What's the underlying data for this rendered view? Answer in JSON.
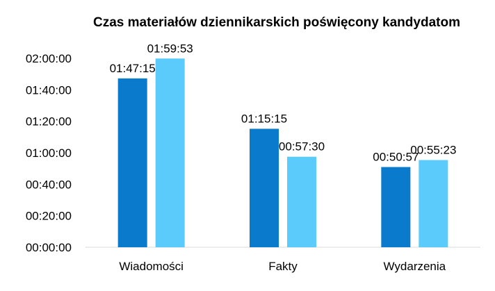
{
  "chart_data": {
    "type": "bar",
    "title": "Czas materiałów dziennikarskich poświęcony kandydatom",
    "categories": [
      "Wiadomości",
      "Fakty",
      "Wydarzenia"
    ],
    "series": [
      {
        "values": [
          6435,
          4515,
          3057
        ],
        "labels": [
          "01:47:15",
          "01:15:15",
          "00:50:57"
        ],
        "color": "#0A7ACC"
      },
      {
        "values": [
          7193,
          3450,
          3323
        ],
        "labels": [
          "01:59:53",
          "00:57:30",
          "00:55:23"
        ],
        "color": "#5BCBFB"
      }
    ],
    "value_unit": "seconds",
    "ylim": [
      0,
      7200
    ],
    "yticks": [
      0,
      1200,
      2400,
      3600,
      4800,
      6000,
      7200
    ],
    "ytick_labels": [
      "00:00:00",
      "00:20:00",
      "00:40:00",
      "01:00:00",
      "01:20:00",
      "01:40:00",
      "02:00:00"
    ],
    "grid": false,
    "legend": "none"
  }
}
